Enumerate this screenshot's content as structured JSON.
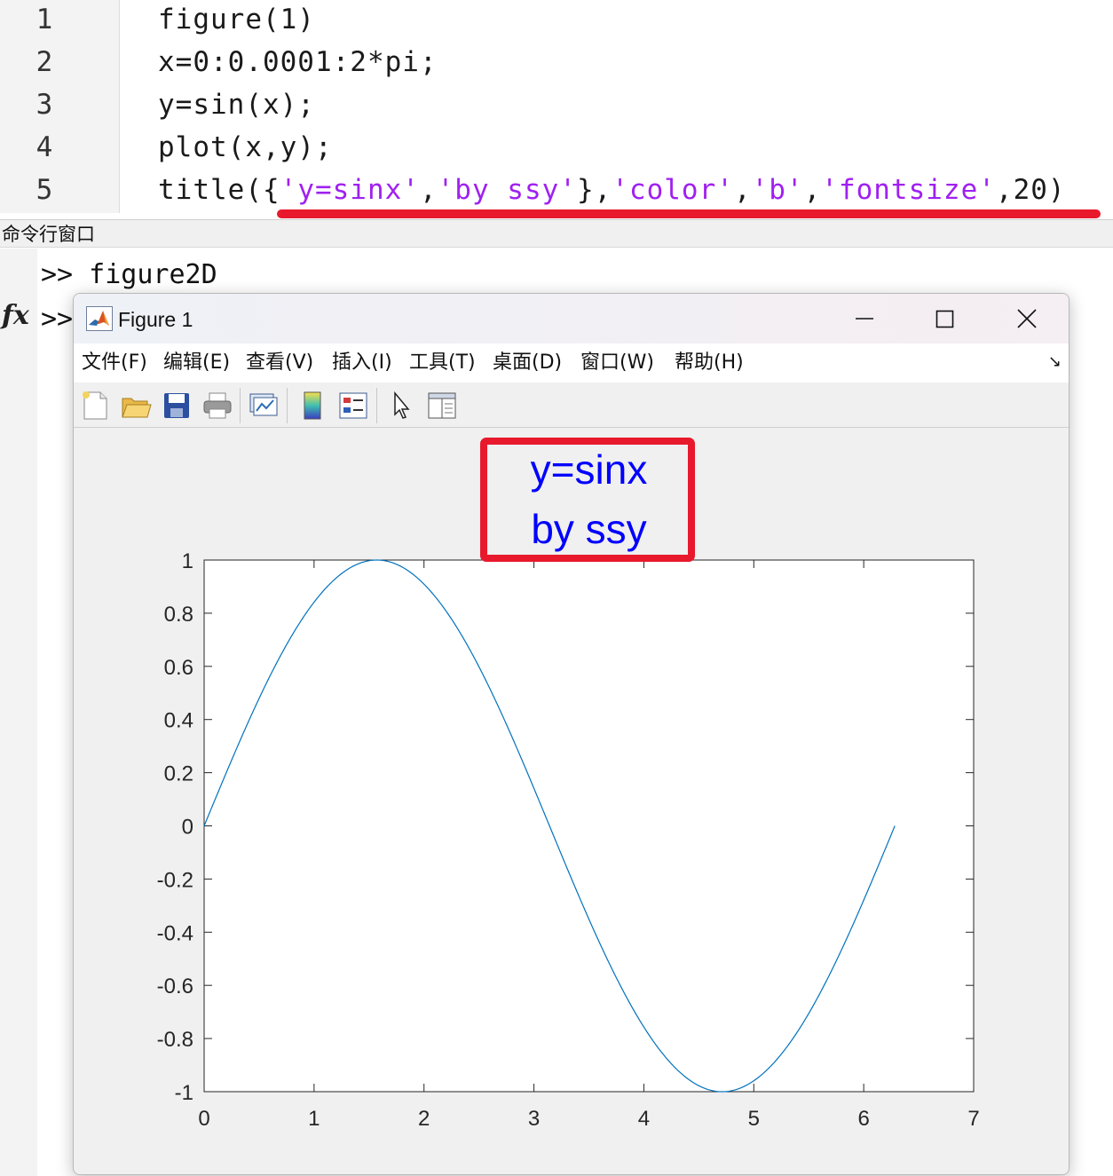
{
  "editor": {
    "lines": [
      {
        "num": "1",
        "segments": [
          {
            "t": "figure(1)",
            "s": false
          }
        ]
      },
      {
        "num": "2",
        "segments": [
          {
            "t": "x=0:0.0001:2*pi;",
            "s": false
          }
        ]
      },
      {
        "num": "3",
        "segments": [
          {
            "t": "y=sin(x);",
            "s": false
          }
        ]
      },
      {
        "num": "4",
        "segments": [
          {
            "t": "plot(x,y);",
            "s": false
          }
        ]
      },
      {
        "num": "5",
        "segments": [
          {
            "t": "title({",
            "s": false
          },
          {
            "t": "'y=sinx'",
            "s": true
          },
          {
            "t": ",",
            "s": false
          },
          {
            "t": "'by ssy'",
            "s": true
          },
          {
            "t": "},",
            "s": false
          },
          {
            "t": "'color'",
            "s": true
          },
          {
            "t": ",",
            "s": false
          },
          {
            "t": "'b'",
            "s": true
          },
          {
            "t": ",",
            "s": false
          },
          {
            "t": "'fontsize'",
            "s": true
          },
          {
            "t": ",20)",
            "s": false
          }
        ]
      }
    ],
    "string_color": "#a020f0",
    "annotation_color": "#e8192c"
  },
  "command_window": {
    "header": "命令行窗口",
    "line1": ">> figure2D",
    "line2": ">>",
    "fx_icon": "fx"
  },
  "figure": {
    "title": "Figure 1",
    "menu": [
      "文件(F)",
      "编辑(E)",
      "查看(V)",
      "插入(I)",
      "工具(T)",
      "桌面(D)",
      "窗口(W)",
      "帮助(H)"
    ],
    "toolbar_icons": [
      "new-figure-icon",
      "open-file-icon",
      "save-icon",
      "print-icon",
      "link-plot-icon",
      "colorbar-icon",
      "legend-icon",
      "pointer-icon",
      "property-inspector-icon"
    ]
  },
  "chart_data": {
    "type": "line",
    "title_lines": [
      "y=sinx",
      "by ssy"
    ],
    "title_color": "#0000ff",
    "line_color": "#0072bd",
    "function": "sin(x)",
    "x_range": [
      0,
      6.2832
    ],
    "xlim": [
      0,
      7
    ],
    "ylim": [
      -1,
      1
    ],
    "xticks": [
      "0",
      "1",
      "2",
      "3",
      "4",
      "5",
      "6",
      "7"
    ],
    "yticks": [
      "1",
      "0.8",
      "0.6",
      "0.4",
      "0.2",
      "0",
      "-0.2",
      "-0.4",
      "-0.6",
      "-0.8",
      "-1"
    ],
    "annotation_box_color": "#e8192c",
    "grid": false
  }
}
